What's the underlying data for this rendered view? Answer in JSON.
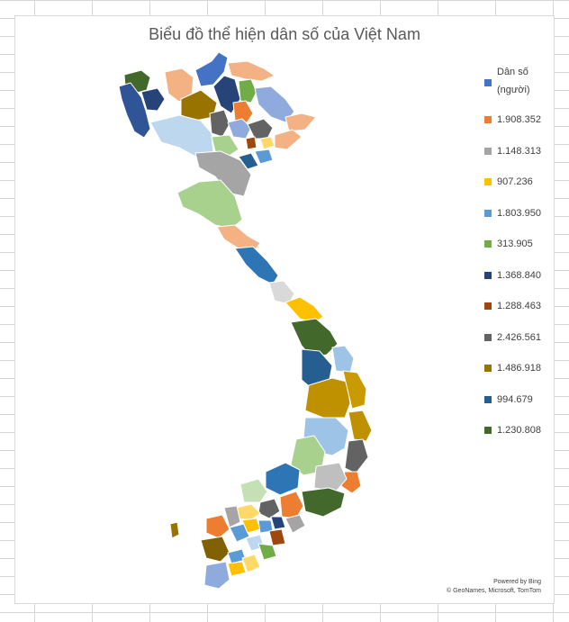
{
  "title": "Biểu đồ thể hiện dân số của Việt Nam",
  "legend": {
    "title": "Dân số",
    "unit": "(người)",
    "items": [
      {
        "label": "",
        "color": "#4472c4"
      },
      {
        "label": "1.908.352",
        "color": "#ed7d31"
      },
      {
        "label": "1.148.313",
        "color": "#a5a5a5"
      },
      {
        "label": "907.236",
        "color": "#ffc000"
      },
      {
        "label": "1.803.950",
        "color": "#5b9bd5"
      },
      {
        "label": "313.905",
        "color": "#70ad47"
      },
      {
        "label": "1.368.840",
        "color": "#264478"
      },
      {
        "label": "1.288.463",
        "color": "#9e480e"
      },
      {
        "label": "2.426.561",
        "color": "#636363"
      },
      {
        "label": "1.486.918",
        "color": "#997300"
      },
      {
        "label": "994.679",
        "color": "#255e91"
      },
      {
        "label": "1.230.808",
        "color": "#43682b"
      }
    ]
  },
  "credits": {
    "line1": "Powered by Bing",
    "line2": "© GeoNames, Microsoft, TomTom"
  }
}
